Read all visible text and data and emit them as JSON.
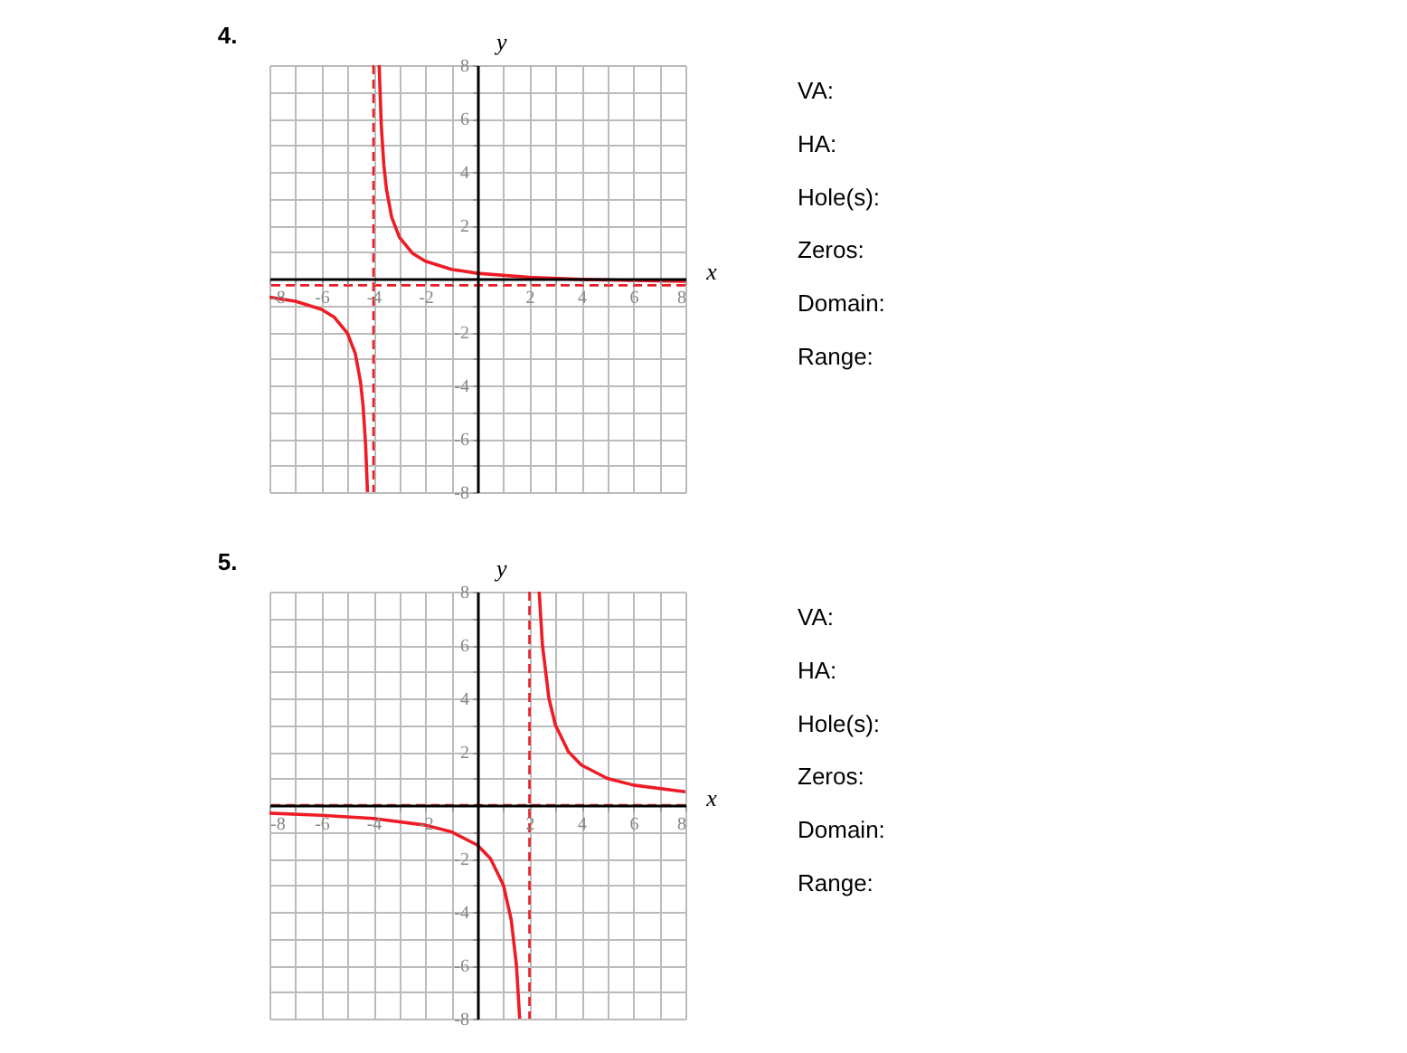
{
  "chart_data": [
    {
      "type": "line",
      "title": "4.",
      "xlabel": "x",
      "ylabel": "y",
      "xlim": [
        -8,
        8
      ],
      "ylim": [
        -8,
        8
      ],
      "xticks": [
        -8,
        {
          "value": -7,
          "label": null
        },
        -6,
        {
          "value": -5,
          "label": null
        },
        -4,
        {
          "value": -3,
          "label": null
        },
        -2,
        {
          "value": -1,
          "label": null
        },
        {
          "value": 1,
          "label": null
        },
        2,
        {
          "value": 3,
          "label": null
        },
        4,
        {
          "value": 5,
          "label": null
        },
        6,
        {
          "value": 7,
          "label": null
        },
        8
      ],
      "yticks": [
        -8,
        {
          "value": -7,
          "label": null
        },
        -6,
        {
          "value": -5,
          "label": null
        },
        -4,
        {
          "value": -3,
          "label": null
        },
        -2,
        {
          "value": -1,
          "label": null
        },
        {
          "value": 1,
          "label": null
        },
        2,
        {
          "value": 3,
          "label": null
        },
        4,
        {
          "value": 5,
          "label": null
        },
        6,
        {
          "value": 7,
          "label": null
        },
        8
      ],
      "grid": true,
      "line_style": "solid",
      "series": [
        {
          "color": "#ee1c25",
          "x": [
            -8,
            -7,
            -6,
            -5.5,
            -5,
            -4.7,
            -4.5,
            -4.4,
            -4.3,
            -4.23
          ],
          "values": [
            -0.7,
            -0.85,
            -1.15,
            -1.45,
            -2.05,
            -2.8,
            -3.85,
            -4.75,
            -6.25,
            -8
          ]
        },
        {
          "color": "#ee1c25",
          "x": [
            -3.78,
            -3.7,
            -3.6,
            -3.5,
            -3.3,
            -3,
            -2.5,
            -2,
            -1,
            0,
            2,
            4,
            6,
            8
          ],
          "values": [
            8,
            5.75,
            4.25,
            3.35,
            2.3,
            1.55,
            0.95,
            0.65,
            0.35,
            0.2,
            0.05,
            -0.03,
            -0.07,
            -0.1
          ]
        }
      ],
      "ref_lines": [
        {
          "axis": "x",
          "value": -4,
          "color": "#ee1c25",
          "line_style": "dashed"
        },
        {
          "axis": "y",
          "value": -0.25,
          "color": "#ee1c25",
          "line_style": "dashed"
        }
      ]
    },
    {
      "type": "other",
      "annotations": [
        "VA:",
        "HA:",
        "Hole(s):",
        "Zeros:",
        "Domain:",
        "Range:"
      ]
    },
    {
      "type": "line",
      "title": "5.",
      "xlabel": "x",
      "ylabel": "y",
      "xlim": [
        -8,
        8
      ],
      "ylim": [
        -8,
        8
      ],
      "xticks": [
        -8,
        {
          "value": -7,
          "label": null
        },
        -6,
        {
          "value": -5,
          "label": null
        },
        -4,
        {
          "value": -3,
          "label": null
        },
        -2,
        {
          "value": -1,
          "label": null
        },
        {
          "value": 1,
          "label": null
        },
        2,
        {
          "value": 3,
          "label": null
        },
        4,
        {
          "value": 5,
          "label": null
        },
        6,
        {
          "value": 7,
          "label": null
        },
        8
      ],
      "yticks": [
        -8,
        {
          "value": -7,
          "label": null
        },
        -6,
        {
          "value": -5,
          "label": null
        },
        -4,
        {
          "value": -3,
          "label": null
        },
        -2,
        {
          "value": -1,
          "label": null
        },
        {
          "value": 1,
          "label": null
        },
        2,
        {
          "value": 3,
          "label": null
        },
        4,
        {
          "value": 5,
          "label": null
        },
        6,
        {
          "value": 7,
          "label": null
        },
        8
      ],
      "grid": true,
      "line_style": "solid",
      "series": [
        {
          "color": "#ee1c25",
          "x": [
            -8,
            -6,
            -4,
            -2,
            -1,
            0,
            0.5,
            1,
            1.3,
            1.5,
            1.625
          ],
          "values": [
            -0.3,
            -0.38,
            -0.5,
            -0.75,
            -1,
            -1.5,
            -2,
            -3,
            -4.3,
            -6,
            -8
          ]
        },
        {
          "color": "#ee1c25",
          "x": [
            2.375,
            2.5,
            2.75,
            3,
            3.5,
            4,
            5,
            6,
            8
          ],
          "values": [
            8,
            6,
            4,
            3,
            2,
            1.5,
            1,
            0.75,
            0.5
          ]
        }
      ],
      "ref_lines": [
        {
          "axis": "x",
          "value": 2,
          "color": "#ee1c25",
          "line_style": "dashed"
        },
        {
          "axis": "y",
          "value": 0,
          "color": "#ee1c25",
          "line_style": "dashed"
        }
      ]
    },
    {
      "type": "other",
      "annotations": [
        "VA:",
        "HA:",
        "Hole(s):",
        "Zeros:",
        "Domain:",
        "Range:"
      ]
    }
  ]
}
